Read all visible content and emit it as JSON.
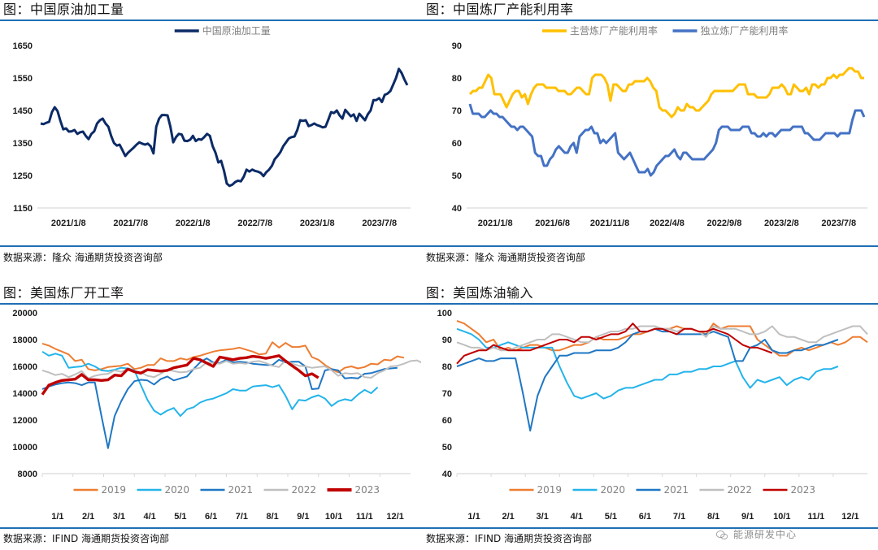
{
  "panels": [
    {
      "title": "图：中国原油加工量",
      "source": "数据来源：隆众   海通期货投资咨询部"
    },
    {
      "title": "图：中国炼厂产能利用率",
      "source": "数据来源：隆众   海通期货投资咨询部"
    },
    {
      "title": "图：美国炼厂开工率",
      "source": "数据来源：IFIND   海通期货投资咨询部"
    },
    {
      "title": "图：美国炼油输入",
      "source": "数据来源：IFIND   海通期货投资咨询部"
    }
  ],
  "watermark": "能源研发中心",
  "chart_data": [
    {
      "type": "line",
      "title": "中国原油加工量",
      "ylim": [
        1150,
        1650
      ],
      "yticks": [
        "1650",
        "1550",
        "1450",
        "1350",
        "1250",
        "1150"
      ],
      "xticks": [
        "2021/1/8",
        "2021/7/8",
        "2022/1/8",
        "2022/7/8",
        "2023/1/8",
        "2023/7/8"
      ],
      "legend_position": "top-center",
      "series": [
        {
          "name": "中国原油加工量",
          "color": "#0b2a66",
          "values": [
            1410,
            1408,
            1412,
            1415,
            1445,
            1460,
            1448,
            1418,
            1392,
            1395,
            1385,
            1386,
            1390,
            1378,
            1383,
            1385,
            1372,
            1362,
            1378,
            1386,
            1410,
            1420,
            1425,
            1410,
            1400,
            1372,
            1350,
            1342,
            1345,
            1328,
            1310,
            1320,
            1328,
            1336,
            1345,
            1352,
            1348,
            1345,
            1348,
            1340,
            1318,
            1400,
            1425,
            1436,
            1436,
            1435,
            1400,
            1352,
            1368,
            1378,
            1376,
            1357,
            1356,
            1360,
            1372,
            1356,
            1362,
            1360,
            1368,
            1378,
            1372,
            1340,
            1320,
            1290,
            1295,
            1265,
            1225,
            1218,
            1222,
            1230,
            1234,
            1232,
            1246,
            1268,
            1262,
            1268,
            1264,
            1262,
            1258,
            1248,
            1260,
            1268,
            1280,
            1300,
            1310,
            1322,
            1340,
            1352,
            1364,
            1368,
            1370,
            1390,
            1420,
            1418,
            1420,
            1402,
            1405,
            1410,
            1405,
            1402,
            1398,
            1400,
            1422,
            1445,
            1442,
            1450,
            1435,
            1425,
            1452,
            1442,
            1432,
            1438,
            1418,
            1440,
            1430,
            1420,
            1438,
            1450,
            1482,
            1482,
            1488,
            1476,
            1498,
            1502,
            1510,
            1530,
            1550,
            1578,
            1565,
            1545,
            1528
          ]
        }
      ]
    },
    {
      "type": "line",
      "title": "中国炼厂产能利用率",
      "ylim": [
        40,
        90
      ],
      "yticks": [
        "90",
        "80",
        "70",
        "60",
        "50",
        "40"
      ],
      "xticks": [
        "2021/1/8",
        "2021/6/8",
        "2021/11/8",
        "2022/4/8",
        "2022/9/8",
        "2023/2/8",
        "2023/7/8"
      ],
      "legend_position": "top-center",
      "series": [
        {
          "name": "主营炼厂产能利用率",
          "color": "#ffc000",
          "values": [
            75,
            76,
            76,
            77,
            77,
            79,
            81,
            80,
            75,
            75,
            75,
            73,
            71,
            73,
            75,
            76,
            76,
            74,
            75,
            72,
            75,
            77,
            78,
            78,
            78,
            77,
            77,
            77,
            77,
            76,
            76,
            76,
            75,
            75,
            76,
            77,
            77,
            76,
            75,
            75,
            80,
            81,
            81,
            81,
            80,
            78,
            73,
            78,
            78,
            77,
            76,
            76,
            78,
            78,
            79,
            79,
            79,
            79,
            80,
            79,
            77,
            76,
            71,
            70,
            70,
            69,
            68,
            69,
            71,
            70,
            70,
            72,
            71,
            71,
            70,
            70,
            71,
            72,
            73,
            75,
            76,
            76,
            76,
            76,
            76,
            76,
            76,
            77,
            78,
            78,
            78,
            75,
            75,
            75,
            74,
            74,
            74,
            74,
            75,
            77,
            77,
            77,
            78,
            77,
            75,
            75,
            78,
            77,
            76,
            76,
            77,
            75,
            78,
            78,
            77,
            78,
            78,
            80,
            80,
            81,
            80,
            81,
            81,
            82,
            83,
            83,
            82,
            82,
            80,
            80
          ]
        },
        {
          "name": "独立炼厂产能利用率",
          "color": "#4472c4",
          "values": [
            72,
            69,
            69,
            69,
            68,
            68,
            69,
            70,
            69,
            69,
            68,
            68,
            67,
            66,
            65,
            65,
            64,
            65,
            65,
            64,
            63,
            62,
            57,
            56,
            56,
            53,
            53,
            55,
            56,
            58,
            59,
            58,
            57,
            57,
            59,
            60,
            57,
            62,
            63,
            64,
            64,
            65,
            63,
            63,
            60,
            61,
            60,
            61,
            62,
            63,
            57,
            56,
            55,
            56,
            57,
            55,
            53,
            51,
            51,
            51,
            52,
            50,
            51,
            53,
            54,
            55,
            56,
            56,
            57,
            58,
            56,
            55,
            57,
            57,
            56,
            55,
            55,
            55,
            55,
            55,
            56,
            57,
            58,
            60,
            64,
            65,
            65,
            65,
            64,
            64,
            64,
            64,
            65,
            65,
            65,
            63,
            63,
            62,
            62,
            63,
            62,
            63,
            63,
            62,
            63,
            64,
            64,
            64,
            64,
            65,
            65,
            65,
            65,
            63,
            63,
            62,
            61,
            61,
            61,
            62,
            63,
            63,
            63,
            63,
            62,
            63,
            63,
            63,
            63,
            67,
            70,
            70,
            70,
            68
          ]
        }
      ]
    },
    {
      "type": "line",
      "title": "美国炼厂开工率",
      "ylim": [
        8000,
        20000
      ],
      "yticks": [
        "20000",
        "18000",
        "16000",
        "14000",
        "12000",
        "10000",
        "8000"
      ],
      "xticks": [
        "1/1",
        "2/1",
        "3/1",
        "4/1",
        "5/1",
        "6/1",
        "7/1",
        "8/1",
        "9/1",
        "10/1",
        "11/1",
        "12/1"
      ],
      "legend_position": "bottom",
      "series": [
        {
          "name": "2019",
          "color": "#ed7d31",
          "values": [
            17700,
            17550,
            17300,
            17100,
            16900,
            16400,
            16500,
            15800,
            15700,
            15800,
            15950,
            16000,
            16050,
            16200,
            15800,
            15900,
            16100,
            16100,
            16600,
            16400,
            16400,
            16600,
            16500,
            16700,
            16800,
            16950,
            17100,
            17200,
            17250,
            17300,
            17400,
            17250,
            17100,
            16900,
            16950,
            17800,
            17400,
            17750,
            17450,
            17450,
            17550,
            16700,
            16500,
            16100,
            15800,
            15550,
            15900,
            16000,
            15850,
            15950,
            16200,
            16150,
            16500,
            16450,
            16750,
            16650
          ]
        },
        {
          "name": "2020",
          "color": "#23b4ea",
          "values": [
            17100,
            16800,
            16950,
            16800,
            15900,
            15950,
            16000,
            16200,
            16000,
            15700,
            15650,
            15750,
            15900,
            15850,
            15700,
            14600,
            13500,
            12700,
            12400,
            12700,
            12900,
            12300,
            12800,
            12950,
            13300,
            13500,
            13600,
            13800,
            14000,
            14300,
            14200,
            14200,
            14500,
            14550,
            14600,
            14450,
            14600,
            13800,
            12800,
            13500,
            13450,
            13700,
            13850,
            13600,
            13050,
            13400,
            13550,
            13450,
            13900,
            14250,
            14000,
            14450
          ]
        },
        {
          "name": "2021",
          "color": "#1f77c4",
          "values": [
            14300,
            14500,
            14650,
            14750,
            14800,
            14750,
            14600,
            14800,
            14800,
            12300,
            9900,
            12300,
            13400,
            14300,
            14900,
            15000,
            14950,
            14650,
            15050,
            15250,
            14950,
            15100,
            15250,
            15800,
            16300,
            16600,
            16300,
            16250,
            16500,
            16300,
            16350,
            16300,
            16200,
            16150,
            16100,
            16100,
            16500,
            16300,
            16350,
            16350,
            16000,
            14300,
            14350,
            15700,
            15800,
            15700,
            15100,
            15150,
            15100,
            15450,
            15500,
            15650,
            15800,
            15850,
            15900
          ]
        },
        {
          "name": "2022",
          "color": "#bfbfbf",
          "values": [
            15700,
            15550,
            15350,
            15450,
            15200,
            15400,
            15650,
            15100,
            15300,
            15400,
            15450,
            15700,
            15600,
            15800,
            15650,
            15550,
            15300,
            15200,
            15450,
            15750,
            15650,
            15550,
            15600,
            15800,
            15900,
            16300,
            16250,
            16200,
            16400,
            16200,
            16250,
            16200,
            16350,
            16400,
            16250,
            16050,
            15950,
            16450,
            16200,
            16050,
            16000,
            15900,
            15950,
            16000,
            15700,
            15300,
            15500,
            15450,
            15500,
            15200,
            15150,
            15500,
            15700,
            16000,
            16050,
            16200,
            16400,
            16450,
            16200
          ]
        },
        {
          "name": "2023",
          "color": "#c00000",
          "values": [
            13900,
            14600,
            14800,
            14950,
            15000,
            15050,
            15400,
            15000,
            15000,
            14950,
            15000,
            15350,
            15300,
            15800,
            15600,
            15500,
            15750,
            15700,
            15650,
            15700,
            15900,
            16000,
            16100,
            16600,
            16500,
            16250,
            16000,
            16700,
            16600,
            16500,
            16600,
            16650,
            16750,
            16700,
            16600,
            16700,
            16800,
            16400,
            16050,
            15700,
            15300,
            15450,
            15150
          ]
        }
      ]
    },
    {
      "type": "line",
      "title": "美国炼油输入",
      "ylim": [
        40,
        100
      ],
      "yticks": [
        "100",
        "90",
        "80",
        "70",
        "60",
        "50",
        "40"
      ],
      "xticks": [
        "1/1",
        "2/1",
        "3/1",
        "4/1",
        "5/1",
        "6/1",
        "7/1",
        "8/1",
        "9/1",
        "10/1",
        "11/1",
        "12/1"
      ],
      "legend_position": "bottom",
      "series": [
        {
          "name": "2019",
          "color": "#ed7d31",
          "values": [
            97,
            96,
            94,
            92,
            89,
            90,
            86,
            87,
            86,
            87,
            88,
            88,
            87,
            86,
            86,
            87,
            88,
            88,
            89,
            91,
            90,
            90,
            90,
            91,
            92,
            92,
            93,
            94,
            94,
            94,
            95,
            94,
            94,
            93,
            92,
            96,
            94,
            95,
            95,
            95,
            95,
            90,
            88,
            86,
            84,
            84,
            86,
            87,
            86,
            87,
            88,
            89,
            88,
            89,
            91,
            91,
            89
          ]
        },
        {
          "name": "2020",
          "color": "#23b4ea",
          "values": [
            94,
            93,
            92,
            90,
            87,
            87,
            88,
            89,
            88,
            87,
            87,
            87,
            87,
            87,
            80,
            74,
            69,
            68,
            69,
            70,
            68,
            69,
            71,
            72,
            72,
            73,
            74,
            75,
            75,
            77,
            77,
            78,
            78,
            79,
            79,
            80,
            80,
            81,
            82,
            76,
            72,
            75,
            74,
            75,
            76,
            73,
            75,
            76,
            75,
            78,
            79,
            79,
            80
          ]
        },
        {
          "name": "2021",
          "color": "#1f77c4",
          "values": [
            80,
            81,
            82,
            83,
            82,
            82,
            83,
            83,
            83,
            70,
            56,
            69,
            76,
            80,
            84,
            84,
            85,
            85,
            85,
            86,
            86,
            86,
            87,
            89,
            92,
            93,
            93,
            94,
            93,
            93,
            92,
            92,
            92,
            92,
            92,
            93,
            92,
            91,
            82,
            82,
            87,
            88,
            90,
            86,
            85,
            85,
            86,
            86,
            87,
            88,
            88,
            89,
            90
          ]
        },
        {
          "name": "2022",
          "color": "#bfbfbf",
          "values": [
            89,
            88,
            87,
            87,
            86,
            87,
            86,
            86,
            87,
            88,
            89,
            90,
            90,
            92,
            92,
            91,
            90,
            89,
            89,
            91,
            92,
            93,
            93,
            94,
            94,
            95,
            95,
            95,
            94,
            94,
            93,
            94,
            94,
            93,
            91,
            95,
            94,
            94,
            94,
            93,
            92,
            92,
            93,
            95,
            92,
            91,
            91,
            90,
            89,
            89,
            91,
            92,
            93,
            94,
            95,
            95,
            92
          ]
        },
        {
          "name": "2023",
          "color": "#c00000",
          "values": [
            81,
            84,
            85,
            86,
            86,
            88,
            87,
            86,
            86,
            86,
            86,
            87,
            88,
            89,
            90,
            90,
            89,
            91,
            91,
            90,
            91,
            92,
            92,
            93,
            96,
            93,
            93,
            94,
            94,
            93,
            92,
            94,
            94,
            93,
            93,
            94,
            93,
            92,
            90,
            88,
            87,
            87,
            86,
            85
          ]
        }
      ]
    }
  ]
}
